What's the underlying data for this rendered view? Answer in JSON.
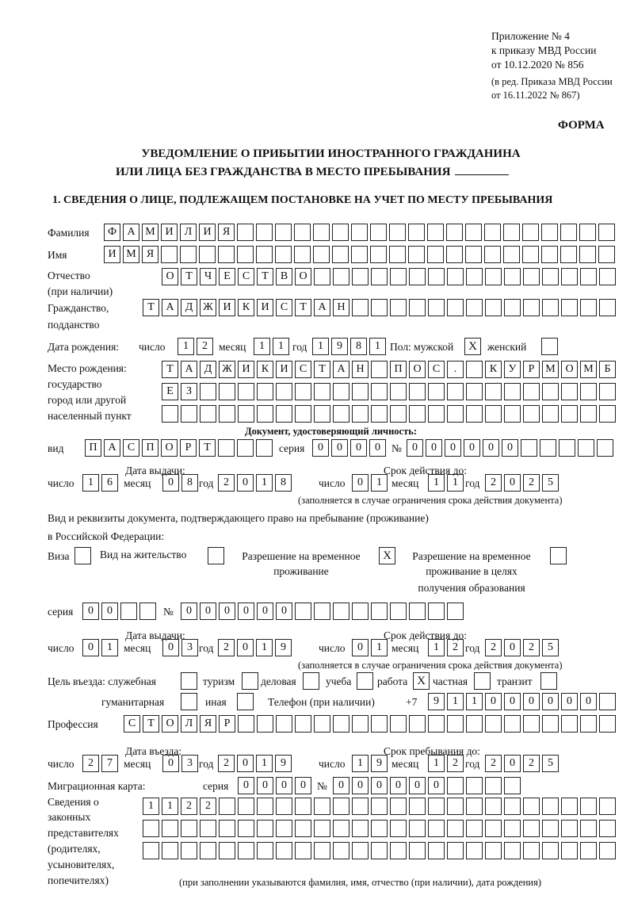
{
  "header": {
    "line1": "Приложение № 4",
    "line2": "к приказу МВД России",
    "line3": "от 10.12.2020 № 856",
    "line4": "(в ред. Приказа МВД России",
    "line5": "от 16.11.2022 № 867)",
    "form": "ФОРМА"
  },
  "title": {
    "line1": "УВЕДОМЛЕНИЕ О ПРИБЫТИИ ИНОСТРАННОГО ГРАЖДАНИНА",
    "line2": "ИЛИ ЛИЦА БЕЗ ГРАЖДАНСТВА В МЕСТО ПРЕБЫВАНИЯ"
  },
  "section1": "1. СВЕДЕНИЯ О ЛИЦЕ, ПОДЛЕЖАЩЕМ ПОСТАНОВКЕ НА УЧЕТ ПО МЕСТУ ПРЕБЫВАНИЯ",
  "labels": {
    "surname": "Фамилия",
    "name": "Имя",
    "patronymic": "Отчество",
    "patronymic2": "(при наличии)",
    "citizenship": "Гражданство,",
    "citizenship2": "подданство",
    "dob": "Дата рождения:",
    "day": "число",
    "month": "месяц",
    "year": "год",
    "sex": "Пол: мужской",
    "female": "женский",
    "pob1": "Место рождения:",
    "pob2": "государство",
    "pob3": "город или другой",
    "pob4": "населенный пункт",
    "iddoc": "Документ, удостоверяющий личность:",
    "kind": "вид",
    "series": "серия",
    "number": "№",
    "issue_date": "Дата выдачи:",
    "valid_until": "Срок действия до:",
    "valid_note": "(заполняется в случае ограничения срока действия документа)",
    "right_doc1": "Вид и реквизиты документа, подтверждающего право на пребывание (проживание)",
    "right_doc2": "в Российской Федерации:",
    "visa": "Виза",
    "residence": "Вид на жительство",
    "trp1": "Разрешение на временное",
    "trp2": "проживание",
    "trpe1": "Разрешение на временное",
    "trpe2": "проживание в целях",
    "trpe3": "получения образования",
    "purpose": "Цель въезда: служебная",
    "tourism": "туризм",
    "business": "деловая",
    "study": "учеба",
    "work": "работа",
    "private": "частная",
    "transit": "транзит",
    "humanitarian": "гуманитарная",
    "other": "иная",
    "phone": "Телефон (при наличии)",
    "phone_prefix": "+7",
    "profession": "Профессия",
    "entry_date": "Дата въезда:",
    "stay_until": "Срок пребывания до:",
    "migration_card": "Миграционная карта:",
    "rep1": "Сведения о",
    "rep2": "законных",
    "rep3": "представителях",
    "rep4": "(родителях,",
    "rep5": "усыновителях,",
    "rep6": "попечителях)",
    "rep_note": "(при заполнении указываются фамилия, имя, отчество (при наличии), дата рождения)"
  },
  "values": {
    "surname": "ФАМИЛИЯ",
    "name": "ИМЯ",
    "patronymic": "ОТЧЕСТВО",
    "citizenship": "ТАДЖИКИСТАН",
    "dob_day": "12",
    "dob_month": "11",
    "dob_year": "1981",
    "male": "X",
    "female": "",
    "pob_row1": "ТАДЖИКИСТАН ПОС. КУРМОМБ",
    "pob_row2": "ЕЗ",
    "pob_row3": "",
    "id_kind": "ПАСПОРТ",
    "id_series": "0000",
    "id_number": "000000",
    "id_issue_day": "16",
    "id_issue_month": "08",
    "id_issue_year": "2018",
    "id_valid_day": "01",
    "id_valid_month": "11",
    "id_valid_year": "2025",
    "visa": "",
    "residence": "",
    "trp": "X",
    "trpe": "",
    "rd_series": "00",
    "rd_number": "000000",
    "rd_issue_day": "01",
    "rd_issue_month": "03",
    "rd_issue_year": "2019",
    "rd_valid_day": "01",
    "rd_valid_month": "12",
    "rd_valid_year": "2025",
    "purpose_official": "",
    "purpose_tourism": "",
    "purpose_business": "",
    "purpose_study": "",
    "purpose_work": "X",
    "purpose_private": "",
    "purpose_transit": "",
    "purpose_humanitarian": "",
    "purpose_other": "",
    "phone": "911000000",
    "profession": "СТОЛЯР",
    "entry_day": "27",
    "entry_month": "03",
    "entry_year": "2019",
    "stay_day": "19",
    "stay_month": "12",
    "stay_year": "2025",
    "mc_series": "0000",
    "mc_number": "000000",
    "rep_row1": "1122",
    "rep_row2": "",
    "rep_row3": ""
  }
}
